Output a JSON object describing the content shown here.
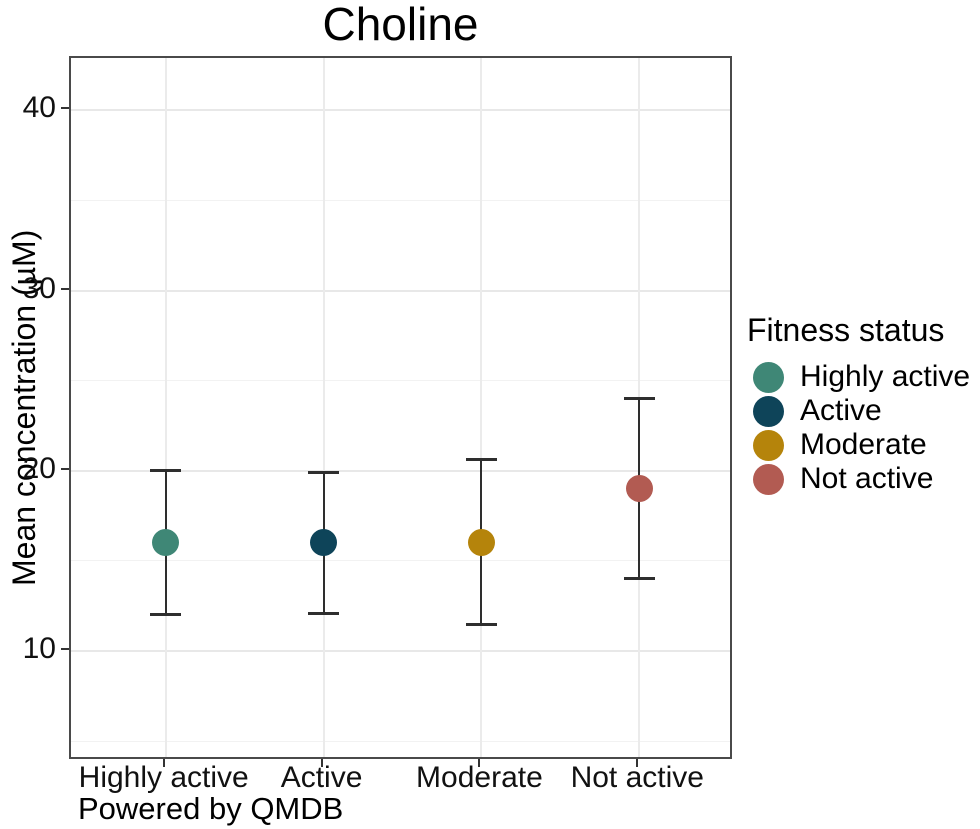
{
  "footer": "Powered by QMDB",
  "legend": {
    "title": "Fitness status",
    "items": [
      {
        "label": "Highly active",
        "color": "#3f8776"
      },
      {
        "label": "Active",
        "color": "#0e4459"
      },
      {
        "label": "Moderate",
        "color": "#b5840b"
      },
      {
        "label": "Not active",
        "color": "#b25b52"
      }
    ]
  },
  "chart_data": {
    "type": "scatter",
    "subtype": "pointrange-with-error-bars",
    "title": "Choline",
    "xlabel": "",
    "ylabel": "Mean concentration (µM)",
    "categories": [
      "Highly active",
      "Active",
      "Moderate",
      "Not active"
    ],
    "points": [
      {
        "category": "Highly active",
        "mean": 16,
        "lower": 12,
        "upper": 20,
        "color": "#3f8776"
      },
      {
        "category": "Active",
        "mean": 16,
        "lower": 12.1,
        "upper": 19.9,
        "color": "#0e4459"
      },
      {
        "category": "Moderate",
        "mean": 16,
        "lower": 11.5,
        "upper": 20.6,
        "color": "#b5840b"
      },
      {
        "category": "Not active",
        "mean": 19,
        "lower": 14,
        "upper": 24,
        "color": "#b25b52"
      }
    ],
    "yticks": [
      10,
      20,
      30,
      40
    ],
    "ylim": [
      3.9,
      42.9
    ],
    "grid": {
      "horizontal_major": [
        10,
        20,
        30,
        40
      ],
      "horizontal_minor": [
        5,
        15,
        25,
        35
      ],
      "vertical_major": "category-centers"
    },
    "legend_title": "Fitness status",
    "legend_position": "right",
    "error_bar_color": "#2e2e2e",
    "panel_border_color": "#4a4a4a"
  }
}
